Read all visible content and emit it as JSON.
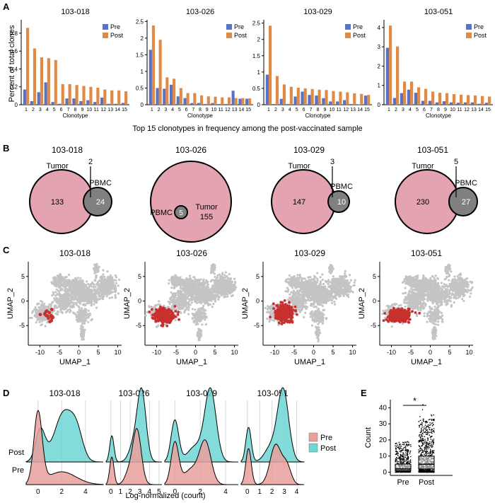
{
  "colors": {
    "pre_bar": "#5a72c4",
    "post_bar": "#e08a45",
    "tumor": "#e3a3b0",
    "pbmc": "#808080",
    "umap_grey": "#c4c4c4",
    "umap_red": "#c8302e",
    "ridge_pre": "#e9a09c",
    "ridge_post": "#6ed6d4",
    "overlap": "#9a9a9a"
  },
  "panel_labels": {
    "a": "A",
    "b": "B",
    "c": "C",
    "d": "D",
    "e": "E"
  },
  "panel_a": {
    "ylabel": "Percent of total clones",
    "xlabel": "Clonotype",
    "caption": "Top 15 clonotypes in frequency among the post-vaccinated sample",
    "legend": [
      "Pre",
      "Post"
    ],
    "categories": [
      "1",
      "2",
      "3",
      "4",
      "5",
      "6",
      "7",
      "8",
      "9",
      "10",
      "11",
      "12",
      "13",
      "14",
      "15"
    ]
  },
  "chart_data": [
    {
      "type": "bar",
      "title": "103-018",
      "categories": [
        "1",
        "2",
        "3",
        "4",
        "5",
        "6",
        "7",
        "8",
        "9",
        "10",
        "11",
        "12",
        "13",
        "14",
        "15"
      ],
      "series": [
        {
          "name": "Pre",
          "values": [
            0.17,
            0.04,
            0.14,
            0.25,
            0.03,
            0.01,
            0.07,
            0.07,
            0.04,
            0.05,
            0.03,
            0.08,
            0.01,
            0.01,
            0.02
          ]
        },
        {
          "name": "Post",
          "values": [
            0.86,
            0.63,
            0.53,
            0.52,
            0.5,
            0.23,
            0.23,
            0.22,
            0.21,
            0.2,
            0.19,
            0.17,
            0.16,
            0.16,
            0.15
          ]
        }
      ],
      "xlabel": "Clonotype",
      "ylabel": "Percent of total clones",
      "ylim": [
        0,
        0.95
      ],
      "yticks": [
        "0",
        "0.2",
        "0.4",
        "0.6",
        "0.8"
      ],
      "ytick_values": [
        0,
        0.2,
        0.4,
        0.6,
        0.8
      ]
    },
    {
      "type": "bar",
      "title": "103-026",
      "categories": [
        "1",
        "2",
        "3",
        "4",
        "5",
        "6",
        "7",
        "8",
        "9",
        "10",
        "11",
        "12",
        "13",
        "14",
        "15"
      ],
      "series": [
        {
          "name": "Pre",
          "values": [
            1.65,
            0.5,
            0.48,
            0.6,
            0.25,
            0.2,
            0.05,
            0.05,
            0.02,
            0.05,
            0.02,
            0.02,
            0.42,
            0.18,
            0.18
          ]
        },
        {
          "name": "Post",
          "values": [
            2.38,
            1.95,
            0.82,
            0.78,
            0.5,
            0.35,
            0.35,
            0.28,
            0.25,
            0.24,
            0.22,
            0.22,
            0.2,
            0.2,
            0.19
          ]
        }
      ],
      "xlabel": "Clonotype",
      "ylabel": "",
      "ylim": [
        0,
        2.55
      ],
      "yticks": [
        "0",
        "0.5",
        "1",
        "1.5",
        "2",
        "2.5"
      ],
      "ytick_values": [
        0,
        0.5,
        1,
        1.5,
        2,
        2.5
      ]
    },
    {
      "type": "bar",
      "title": "103-029",
      "categories": [
        "1",
        "2",
        "3",
        "4",
        "5",
        "6",
        "7",
        "8",
        "9",
        "10",
        "11",
        "12",
        "13",
        "14",
        "15"
      ],
      "series": [
        {
          "name": "Pre",
          "values": [
            0.92,
            0.02,
            0.18,
            0.02,
            0.25,
            0.4,
            0.3,
            0.28,
            0.2,
            0.1,
            0.1,
            0.14,
            0.02,
            0.01,
            0.28
          ]
        },
        {
          "name": "Post",
          "values": [
            2.42,
            0.88,
            0.62,
            0.55,
            0.52,
            0.5,
            0.48,
            0.46,
            0.45,
            0.42,
            0.4,
            0.38,
            0.35,
            0.33,
            0.3
          ]
        }
      ],
      "xlabel": "Clonotype",
      "ylabel": "",
      "ylim": [
        0,
        2.6
      ],
      "yticks": [
        "0",
        "0.5",
        "1",
        "1.5",
        "2",
        "2.5"
      ],
      "ytick_values": [
        0,
        0.5,
        1,
        1.5,
        2,
        2.5
      ]
    },
    {
      "type": "bar",
      "title": "103-051",
      "categories": [
        "1",
        "2",
        "3",
        "4",
        "5",
        "6",
        "7",
        "8",
        "9",
        "10",
        "11",
        "12",
        "13",
        "14",
        "15"
      ],
      "series": [
        {
          "name": "Pre",
          "values": [
            2.95,
            0.35,
            0.6,
            0.78,
            0.62,
            0.2,
            0.2,
            0.12,
            0.18,
            0.12,
            0.1,
            0.12,
            0.12,
            0.05,
            0.1
          ]
        },
        {
          "name": "Post",
          "values": [
            4.1,
            3.02,
            1.2,
            1.2,
            0.9,
            0.82,
            0.68,
            0.62,
            0.6,
            0.55,
            0.52,
            0.5,
            0.48,
            0.45,
            0.42
          ]
        }
      ],
      "xlabel": "Clonotype",
      "ylabel": "",
      "ylim": [
        0,
        4.4
      ],
      "yticks": [
        "0",
        "1",
        "2",
        "3",
        "4"
      ],
      "ytick_values": [
        0,
        1,
        2,
        3,
        4
      ]
    }
  ],
  "panel_b": {
    "venns": [
      {
        "title": "103-018",
        "tumor_label": "Tumor",
        "pbmc_label": "PBMC",
        "tumor_only": "133",
        "overlap": "2",
        "pbmc_only": "24"
      },
      {
        "title": "103-026",
        "tumor_label": "Tumor",
        "pbmc_label": "PBMC",
        "tumor_only": "155",
        "overlap": "5",
        "pbmc_only": ""
      },
      {
        "title": "103-029",
        "tumor_label": "Tumor",
        "pbmc_label": "PBMC",
        "tumor_only": "147",
        "overlap": "3",
        "pbmc_only": "10"
      },
      {
        "title": "103-051",
        "tumor_label": "Tumor",
        "pbmc_label": "PBMC",
        "tumor_only": "230",
        "overlap": "5",
        "pbmc_only": "27"
      }
    ]
  },
  "panel_c": {
    "xlabel": "UMAP_1",
    "ylabel": "UMAP_2",
    "xticks": [
      "-10",
      "-5",
      "0",
      "5",
      "10"
    ],
    "xtick_values": [
      -10,
      -5,
      0,
      5,
      10
    ],
    "yticks": [
      "-5",
      "0",
      "5"
    ],
    "ytick_values": [
      -5,
      0,
      5
    ],
    "xlim": [
      -13,
      11
    ],
    "ylim": [
      -9,
      8
    ],
    "titles": [
      "103-018",
      "103-026",
      "103-029",
      "103-051"
    ]
  },
  "panel_d": {
    "xlabel": "Log-normalized (count)",
    "ylabels": [
      "Post",
      "Pre"
    ],
    "legend": [
      "Pre",
      "Post"
    ],
    "plots": [
      {
        "title": "103-018",
        "xlim": [
          -1,
          5.5
        ],
        "ticks": [
          "0",
          "2",
          "4"
        ],
        "tick_values": [
          0,
          2,
          4
        ],
        "pre": [
          {
            "mu": 0.0,
            "sd": 0.35,
            "w": 1.0
          },
          {
            "mu": 2.0,
            "sd": 1.2,
            "w": 0.18
          }
        ],
        "post": [
          {
            "mu": 0.2,
            "sd": 0.4,
            "w": 0.45
          },
          {
            "mu": 2.2,
            "sd": 0.8,
            "w": 0.7
          },
          {
            "mu": 3.3,
            "sd": 0.5,
            "w": 0.3
          }
        ]
      },
      {
        "title": "103-026",
        "xlim": [
          -0.5,
          5.3
        ],
        "ticks": [
          "0",
          "1",
          "2",
          "3",
          "4",
          "5"
        ],
        "tick_values": [
          0,
          1,
          2,
          3,
          4,
          5
        ],
        "pre": [
          {
            "mu": 0.1,
            "sd": 0.22,
            "w": 0.4
          },
          {
            "mu": 2.7,
            "sd": 0.45,
            "w": 0.8
          },
          {
            "mu": 1.8,
            "sd": 0.4,
            "w": 0.15
          }
        ],
        "post": [
          {
            "mu": 0.1,
            "sd": 0.22,
            "w": 0.38
          },
          {
            "mu": 3.2,
            "sd": 0.45,
            "w": 1.0
          },
          {
            "mu": 2.4,
            "sd": 0.5,
            "w": 0.25
          }
        ]
      },
      {
        "title": "103-029",
        "xlim": [
          -0.8,
          5.0
        ],
        "ticks": [
          "0",
          "2",
          "4"
        ],
        "tick_values": [
          0,
          2,
          4
        ],
        "pre": [
          {
            "mu": 0.0,
            "sd": 0.3,
            "w": 0.55
          },
          {
            "mu": 2.4,
            "sd": 0.45,
            "w": 0.55
          },
          {
            "mu": 1.3,
            "sd": 0.6,
            "w": 0.2
          }
        ],
        "post": [
          {
            "mu": 0.0,
            "sd": 0.3,
            "w": 0.55
          },
          {
            "mu": 2.8,
            "sd": 0.45,
            "w": 0.95
          },
          {
            "mu": 1.6,
            "sd": 0.6,
            "w": 0.2
          }
        ]
      },
      {
        "title": "103-051",
        "xlim": [
          -0.5,
          4.6
        ],
        "ticks": [
          "0",
          "1",
          "2",
          "3",
          "4"
        ],
        "tick_values": [
          0,
          1,
          2,
          3,
          4
        ],
        "pre": [
          {
            "mu": 0.1,
            "sd": 0.22,
            "w": 0.5
          },
          {
            "mu": 2.3,
            "sd": 0.45,
            "w": 0.55
          },
          {
            "mu": 3.2,
            "sd": 0.35,
            "w": 0.25
          }
        ],
        "post": [
          {
            "mu": 0.1,
            "sd": 0.22,
            "w": 0.48
          },
          {
            "mu": 2.9,
            "sd": 0.45,
            "w": 1.0
          },
          {
            "mu": 1.9,
            "sd": 0.5,
            "w": 0.2
          }
        ]
      }
    ]
  },
  "panel_e": {
    "type": "box",
    "ylabel": "Count",
    "categories": [
      "Pre",
      "Post"
    ],
    "significance": "*",
    "ylim": [
      -2,
      45
    ],
    "yticks": [
      "0",
      "10",
      "20",
      "30",
      "40"
    ],
    "ytick_values": [
      0,
      10,
      20,
      30,
      40
    ],
    "boxes": [
      {
        "name": "Pre",
        "min": 0,
        "q1": 1,
        "median": 2,
        "q3": 5,
        "max": 11
      },
      {
        "name": "Post",
        "min": 0,
        "q1": 2,
        "median": 5,
        "q3": 10,
        "max": 19
      }
    ]
  }
}
